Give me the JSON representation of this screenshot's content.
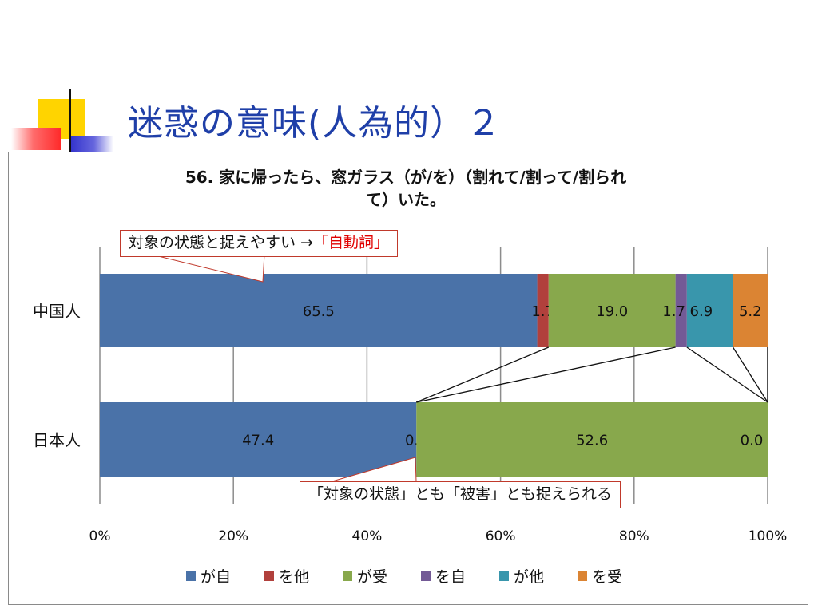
{
  "slide": {
    "title": "迷惑の意味(人為的）２"
  },
  "callouts": {
    "top_text": "対象の状態と捉えやすい →",
    "top_highlight": "「自動詞」",
    "bottom_text": "「対象の状態」とも「被害」とも捉えられる"
  },
  "colors": {
    "title": "#1f3fa8",
    "callout_border": "#c0392b",
    "highlight": "#e00000"
  },
  "chart_data": {
    "type": "bar",
    "orientation": "horizontal",
    "stacked": "percent",
    "title": "56. 家に帰ったら、窓ガラス（が/を）（割れて/割って/割られて）いた。",
    "title_lines": [
      "56. 家に帰ったら、窓ガラス（が/を）（割れて/割って/割られ",
      "て）いた。"
    ],
    "categories": [
      "中国人",
      "日本人"
    ],
    "xlim": [
      0,
      100
    ],
    "xticks": [
      "0%",
      "20%",
      "40%",
      "60%",
      "80%",
      "100%"
    ],
    "grid": true,
    "legend": "bottom",
    "series": [
      {
        "name": "が自",
        "color": "#4a72a8",
        "values": [
          65.5,
          47.4
        ]
      },
      {
        "name": "を他",
        "color": "#b1403c",
        "values": [
          1.7,
          0.0
        ]
      },
      {
        "name": "が受",
        "color": "#88a84c",
        "values": [
          19.0,
          52.6
        ]
      },
      {
        "name": "を自",
        "color": "#735a96",
        "values": [
          1.7,
          0.0
        ]
      },
      {
        "name": "が他",
        "color": "#3996ac",
        "values": [
          6.9,
          0.0
        ]
      },
      {
        "name": "を受",
        "color": "#db8433",
        "values": [
          5.2,
          0.0
        ]
      }
    ],
    "data_labels": [
      [
        "65.5",
        "1.7",
        "19.0",
        "1.7",
        "6.9",
        "5.2"
      ],
      [
        "47.4",
        "0.0",
        "52.6",
        "0.0"
      ]
    ]
  }
}
